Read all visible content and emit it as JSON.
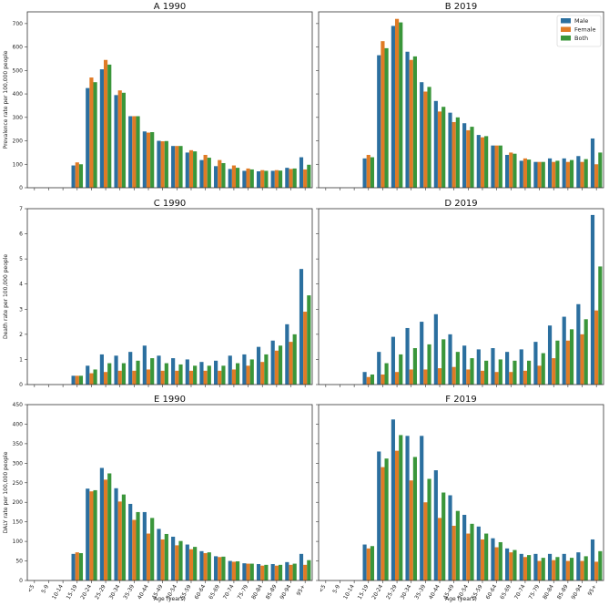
{
  "chart_data": {
    "type": "bar",
    "categories": [
      "<5",
      "5-9",
      "10-14",
      "15-19",
      "20-24",
      "25-29",
      "30-34",
      "35-39",
      "40-44",
      "45-49",
      "50-54",
      "55-59",
      "60-64",
      "65-69",
      "70-74",
      "75-79",
      "80-84",
      "85-89",
      "90-94",
      "95+"
    ],
    "xlabel": "Age (years)",
    "legend": {
      "position": "top-right",
      "entries": [
        "Male",
        "Female",
        "Both"
      ]
    },
    "colors": {
      "Male": "#2b6f9f",
      "Female": "#e07b26",
      "Both": "#3a963a"
    },
    "rows": [
      {
        "ylabel": "Prevalence rate per 100,000 people",
        "ylim": [
          0,
          750
        ],
        "yticks": [
          0,
          100,
          200,
          300,
          400,
          500,
          600,
          700
        ]
      },
      {
        "ylabel": "Death rate per 100,000 people",
        "ylim": [
          0,
          7
        ],
        "yticks": [
          0,
          1,
          2,
          3,
          4,
          5,
          6,
          7
        ]
      },
      {
        "ylabel": "DALY rate per 100,000 people",
        "ylim": [
          0,
          450
        ],
        "yticks": [
          0,
          50,
          100,
          150,
          200,
          250,
          300,
          350,
          400,
          450
        ]
      }
    ],
    "panels": [
      {
        "title": "A 1990",
        "row": 0,
        "col": 0,
        "series": [
          {
            "name": "Male",
            "values": [
              0,
              0,
              0,
              95,
              425,
              505,
              395,
              305,
              240,
              200,
              178,
              150,
              118,
              92,
              80,
              72,
              70,
              72,
              85,
              130
            ]
          },
          {
            "name": "Female",
            "values": [
              0,
              0,
              0,
              108,
              470,
              545,
              415,
              305,
              235,
              198,
              178,
              160,
              140,
              118,
              95,
              82,
              75,
              75,
              80,
              78
            ]
          },
          {
            "name": "Both",
            "values": [
              0,
              0,
              0,
              100,
              450,
              525,
              405,
              305,
              237,
              199,
              178,
              155,
              128,
              105,
              85,
              78,
              72,
              73,
              82,
              98
            ]
          }
        ]
      },
      {
        "title": "B 2019",
        "row": 0,
        "col": 1,
        "series": [
          {
            "name": "Male",
            "values": [
              0,
              0,
              0,
              125,
              565,
              690,
              580,
              450,
              370,
              320,
              275,
              225,
              180,
              140,
              115,
              110,
              125,
              125,
              135,
              210
            ]
          },
          {
            "name": "Female",
            "values": [
              0,
              0,
              0,
              140,
              625,
              720,
              545,
              410,
              325,
              280,
              245,
              215,
              180,
              150,
              125,
              110,
              110,
              110,
              110,
              100
            ]
          },
          {
            "name": "Both",
            "values": [
              0,
              0,
              0,
              130,
              595,
              705,
              560,
              430,
              345,
              300,
              260,
              220,
              180,
              145,
              120,
              110,
              115,
              118,
              122,
              150
            ]
          }
        ]
      },
      {
        "title": "C 1990",
        "row": 1,
        "col": 0,
        "series": [
          {
            "name": "Male",
            "values": [
              0,
              0,
              0,
              0.35,
              0.75,
              1.2,
              1.15,
              1.3,
              1.55,
              1.15,
              1.05,
              1.0,
              0.9,
              0.95,
              1.15,
              1.2,
              1.5,
              1.75,
              2.4,
              4.6
            ]
          },
          {
            "name": "Female",
            "values": [
              0,
              0,
              0,
              0.35,
              0.45,
              0.5,
              0.55,
              0.55,
              0.6,
              0.55,
              0.55,
              0.55,
              0.55,
              0.55,
              0.6,
              0.75,
              0.9,
              1.35,
              1.7,
              2.9
            ]
          },
          {
            "name": "Both",
            "values": [
              0,
              0,
              0,
              0.35,
              0.6,
              0.85,
              0.85,
              0.95,
              1.05,
              0.85,
              0.8,
              0.75,
              0.75,
              0.75,
              0.85,
              1.0,
              1.2,
              1.55,
              2.0,
              3.55
            ]
          }
        ]
      },
      {
        "title": "D 2019",
        "row": 1,
        "col": 1,
        "series": [
          {
            "name": "Male",
            "values": [
              0,
              0,
              0,
              0.5,
              1.3,
              1.9,
              2.25,
              2.5,
              2.8,
              2.0,
              1.55,
              1.4,
              1.45,
              1.3,
              1.4,
              1.7,
              2.35,
              2.7,
              3.2,
              6.75
            ]
          },
          {
            "name": "Female",
            "values": [
              0,
              0,
              0,
              0.3,
              0.4,
              0.5,
              0.6,
              0.6,
              0.65,
              0.7,
              0.6,
              0.55,
              0.5,
              0.5,
              0.55,
              0.75,
              1.05,
              1.75,
              2.0,
              2.95
            ]
          },
          {
            "name": "Both",
            "values": [
              0,
              0,
              0,
              0.4,
              0.85,
              1.2,
              1.45,
              1.6,
              1.8,
              1.3,
              1.05,
              0.95,
              1.0,
              0.95,
              0.95,
              1.25,
              1.75,
              2.2,
              2.6,
              4.7
            ]
          }
        ]
      },
      {
        "title": "E 1990",
        "row": 2,
        "col": 0,
        "series": [
          {
            "name": "Male",
            "values": [
              0,
              0,
              0,
              68,
              235,
              288,
              236,
              196,
              175,
              132,
              112,
              92,
              75,
              62,
              50,
              44,
              42,
              42,
              47,
              68
            ]
          },
          {
            "name": "Female",
            "values": [
              0,
              0,
              0,
              72,
              228,
              258,
              202,
              155,
              120,
              105,
              90,
              80,
              70,
              60,
              48,
              43,
              38,
              38,
              40,
              40
            ]
          },
          {
            "name": "Both",
            "values": [
              0,
              0,
              0,
              70,
              231,
              274,
              220,
              175,
              160,
              119,
              101,
              86,
              72,
              61,
              49,
              43,
              40,
              40,
              43,
              52
            ]
          }
        ]
      },
      {
        "title": "F 2019",
        "row": 2,
        "col": 1,
        "series": [
          {
            "name": "Male",
            "values": [
              0,
              0,
              0,
              92,
              330,
              412,
              370,
              370,
              282,
              218,
              168,
              138,
              108,
              82,
              68,
              68,
              68,
              68,
              72,
              105
            ]
          },
          {
            "name": "Female",
            "values": [
              0,
              0,
              0,
              82,
              290,
              332,
              256,
              200,
              160,
              140,
              120,
              105,
              85,
              72,
              60,
              50,
              52,
              50,
              50,
              48
            ]
          },
          {
            "name": "Both",
            "values": [
              0,
              0,
              0,
              88,
              312,
              372,
              316,
              260,
              225,
              178,
              145,
              120,
              98,
              78,
              65,
              58,
              60,
              58,
              62,
              75
            ]
          }
        ]
      }
    ]
  }
}
